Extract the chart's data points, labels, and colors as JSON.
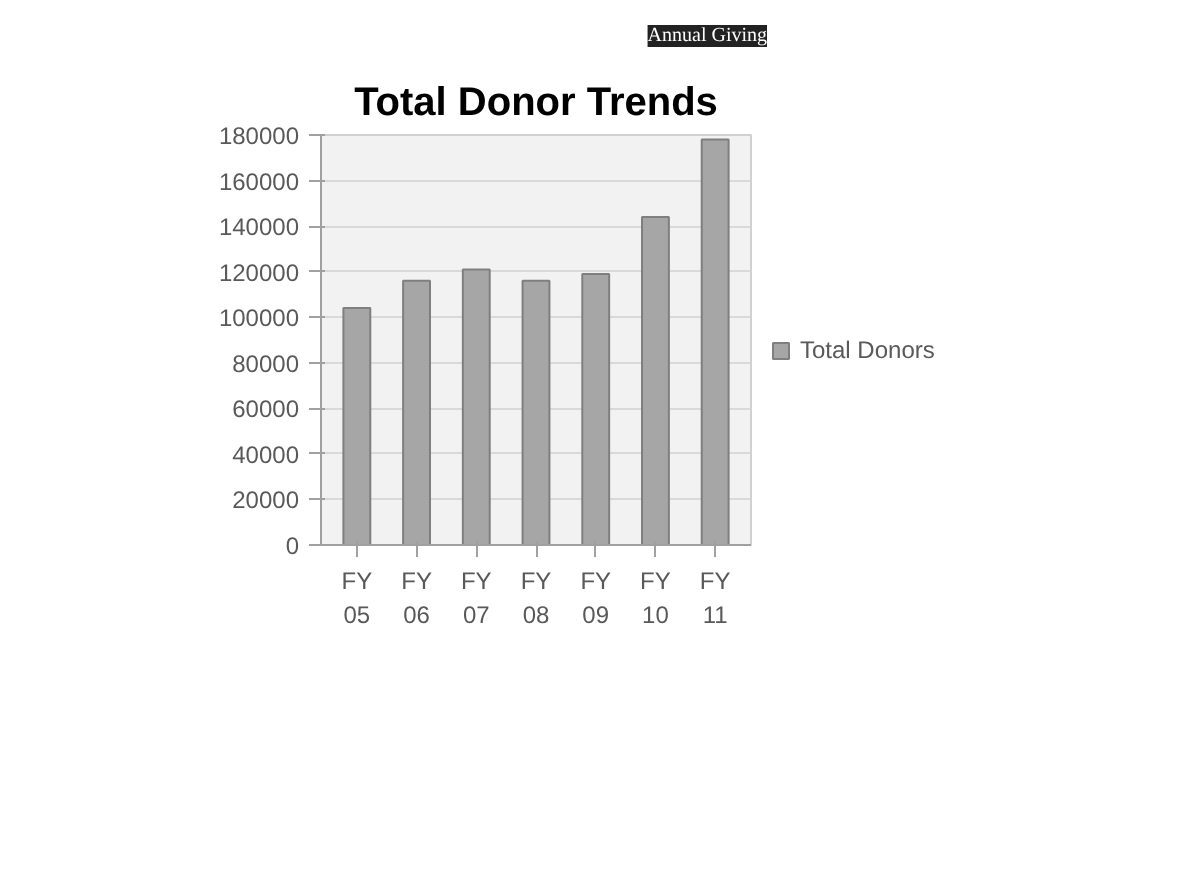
{
  "chart_data": {
    "type": "bar",
    "title": "Total Donor Trends",
    "annotations": [
      "Annual Giving"
    ],
    "categories": [
      "FY 05",
      "FY 06",
      "FY 07",
      "FY 08",
      "FY 09",
      "FY 10",
      "FY 11"
    ],
    "series": [
      {
        "name": "Total Donors",
        "color": "#a6a6a6",
        "values": [
          104000,
          116000,
          121000,
          116000,
          119000,
          144000,
          178000
        ]
      }
    ],
    "ylim": [
      0,
      180000
    ],
    "yticks": [
      0,
      20000,
      40000,
      60000,
      80000,
      100000,
      120000,
      140000,
      160000,
      180000
    ],
    "grid": "y",
    "legend": "right"
  }
}
